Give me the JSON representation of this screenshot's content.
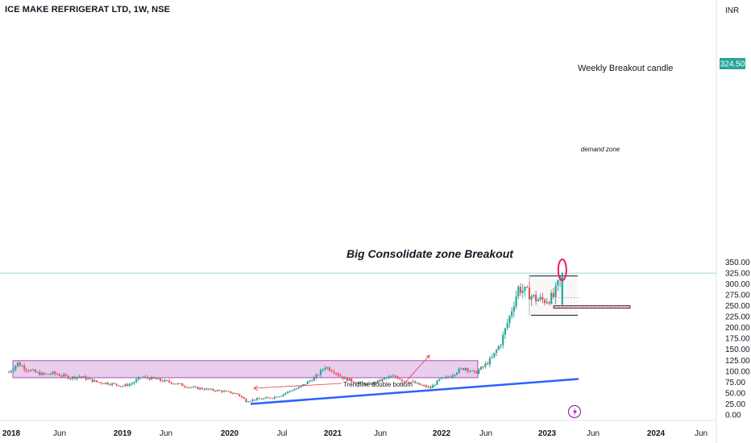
{
  "header": {
    "title": "ICE MAKE REFRIGERAT LTD, 1W, NSE"
  },
  "colors": {
    "up": "#26a69a",
    "down": "#ef5350",
    "zone_fill": "#e1bee7",
    "zone_border": "#9c27b0",
    "trendline": "#2962ff",
    "price_line": "#26a69a",
    "price_label_bg": "#26a69a",
    "demand_fill": "#f8bbd0",
    "annotation_arrow": "#f23645",
    "circle": "#e91e63"
  },
  "chart_data": {
    "type": "candlestick",
    "currency_label": "INR",
    "y_ticks": [
      "350.00",
      "325.00",
      "300.00",
      "275.00",
      "250.00",
      "225.00",
      "200.00",
      "175.00",
      "150.00",
      "125.00",
      "100.00",
      "75.00",
      "50.00",
      "25.00",
      "0.00"
    ],
    "ylim": [
      0,
      350
    ],
    "x_ticks": [
      {
        "label": "2018",
        "year": true
      },
      {
        "label": "Jun",
        "year": false
      },
      {
        "label": "2019",
        "year": true
      },
      {
        "label": "Jun",
        "year": false
      },
      {
        "label": "2020",
        "year": true
      },
      {
        "label": "Jul",
        "year": false
      },
      {
        "label": "2021",
        "year": true
      },
      {
        "label": "Jun",
        "year": false
      },
      {
        "label": "2022",
        "year": true
      },
      {
        "label": "Jun",
        "year": false
      },
      {
        "label": "2023",
        "year": true
      },
      {
        "label": "Jun",
        "year": false
      },
      {
        "label": "2024",
        "year": true
      },
      {
        "label": "Jun",
        "year": false
      }
    ],
    "last_price": "324.50",
    "annotations": {
      "big_breakout": "Big Consolidate zone Breakout",
      "weekly_breakout": "Weekly Breakout candle",
      "demand_zone": "demand zone",
      "trendline_note": "Trendline double bottom"
    },
    "consolidation_zone": {
      "start": "2018-01",
      "end": "2022-05",
      "low": 85,
      "high": 124
    },
    "recent_range": {
      "start": "2022-10",
      "end": "2023-03",
      "low": 228,
      "high": 318
    },
    "demand_zone": {
      "start": "2022-12",
      "end": "2023-07",
      "low": 244,
      "high": 250
    },
    "trendline": {
      "start": {
        "date": "2020-03",
        "value": 25
      },
      "end": {
        "date": "2023-03",
        "value": 82
      }
    },
    "close_series": [
      {
        "date": "2017-12",
        "close": 98
      },
      {
        "date": "2018-01",
        "close": 118
      },
      {
        "date": "2018-02",
        "close": 105
      },
      {
        "date": "2018-03",
        "close": 97
      },
      {
        "date": "2018-04",
        "close": 92
      },
      {
        "date": "2018-05",
        "close": 95
      },
      {
        "date": "2018-06",
        "close": 90
      },
      {
        "date": "2018-07",
        "close": 85
      },
      {
        "date": "2018-08",
        "close": 88
      },
      {
        "date": "2018-09",
        "close": 82
      },
      {
        "date": "2018-10",
        "close": 75
      },
      {
        "date": "2018-11",
        "close": 73
      },
      {
        "date": "2018-12",
        "close": 70
      },
      {
        "date": "2019-01",
        "close": 66
      },
      {
        "date": "2019-02",
        "close": 72
      },
      {
        "date": "2019-03",
        "close": 86
      },
      {
        "date": "2019-04",
        "close": 84
      },
      {
        "date": "2019-05",
        "close": 80
      },
      {
        "date": "2019-06",
        "close": 76
      },
      {
        "date": "2019-07",
        "close": 72
      },
      {
        "date": "2019-08",
        "close": 66
      },
      {
        "date": "2019-09",
        "close": 62
      },
      {
        "date": "2019-10",
        "close": 60
      },
      {
        "date": "2019-11",
        "close": 57
      },
      {
        "date": "2019-12",
        "close": 55
      },
      {
        "date": "2020-01",
        "close": 52
      },
      {
        "date": "2020-02",
        "close": 48
      },
      {
        "date": "2020-03",
        "close": 32
      },
      {
        "date": "2020-04",
        "close": 35
      },
      {
        "date": "2020-05",
        "close": 37
      },
      {
        "date": "2020-06",
        "close": 40
      },
      {
        "date": "2020-07",
        "close": 45
      },
      {
        "date": "2020-08",
        "close": 55
      },
      {
        "date": "2020-09",
        "close": 62
      },
      {
        "date": "2020-10",
        "close": 75
      },
      {
        "date": "2020-11",
        "close": 88
      },
      {
        "date": "2020-12",
        "close": 110
      },
      {
        "date": "2021-01",
        "close": 100
      },
      {
        "date": "2021-02",
        "close": 85
      },
      {
        "date": "2021-03",
        "close": 78
      },
      {
        "date": "2021-04",
        "close": 72
      },
      {
        "date": "2021-05",
        "close": 70
      },
      {
        "date": "2021-06",
        "close": 76
      },
      {
        "date": "2021-07",
        "close": 85
      },
      {
        "date": "2021-08",
        "close": 88
      },
      {
        "date": "2021-09",
        "close": 78
      },
      {
        "date": "2021-10",
        "close": 74
      },
      {
        "date": "2021-11",
        "close": 67
      },
      {
        "date": "2021-12",
        "close": 62
      },
      {
        "date": "2022-01",
        "close": 80
      },
      {
        "date": "2022-02",
        "close": 86
      },
      {
        "date": "2022-03",
        "close": 100
      },
      {
        "date": "2022-04",
        "close": 108
      },
      {
        "date": "2022-05",
        "close": 95
      },
      {
        "date": "2022-06",
        "close": 110
      },
      {
        "date": "2022-07",
        "close": 130
      },
      {
        "date": "2022-08",
        "close": 165
      },
      {
        "date": "2022-09",
        "close": 225
      },
      {
        "date": "2022-10",
        "close": 290
      },
      {
        "date": "2022-11",
        "close": 280
      },
      {
        "date": "2022-12",
        "close": 265
      },
      {
        "date": "2023-01",
        "close": 262
      },
      {
        "date": "2023-02",
        "close": 270
      },
      {
        "date": "2023-03",
        "close": 324.5
      }
    ]
  }
}
